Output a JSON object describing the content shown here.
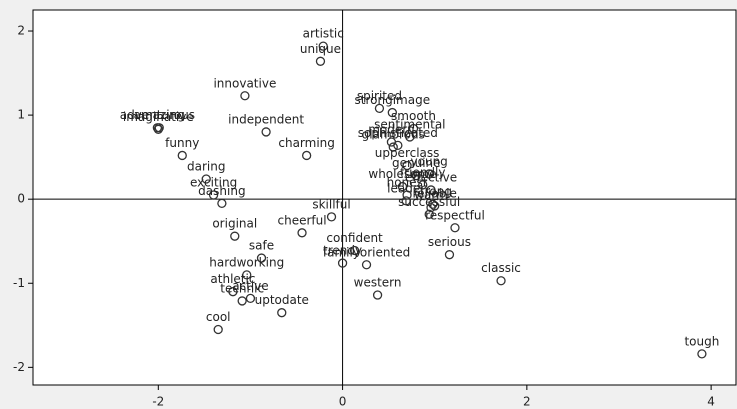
{
  "chart_data": {
    "type": "scatter",
    "labels": [
      "artistic",
      "unique",
      "innovative",
      "amazing",
      "adventurous",
      "imaginative",
      "funny",
      "independent",
      "spirited",
      "strongimage",
      "smooth",
      "modern",
      "sentimental",
      "sophisticated",
      "glamorous",
      "charming",
      "upperclass",
      "young",
      "genuine",
      "daring",
      "wholesome",
      "effective",
      "friendly",
      "strong",
      "reliable",
      "honest",
      "leader",
      "successful",
      "warm",
      "exciting",
      "dashing",
      "skillful",
      "original",
      "respectful",
      "cheerful",
      "safe",
      "trendy",
      "confident",
      "familyoriented",
      "hardworking",
      "serious",
      "classic",
      "western",
      "athletic",
      "active",
      "technic",
      "uptodate",
      "cool",
      "tough"
    ],
    "x": [
      -0.21,
      -0.24,
      -1.06,
      -1.99,
      -2.01,
      -2.0,
      -1.74,
      -0.83,
      0.4,
      0.54,
      0.77,
      0.53,
      0.73,
      0.6,
      0.55,
      -0.39,
      0.7,
      0.94,
      0.8,
      -1.48,
      0.65,
      0.96,
      0.87,
      0.98,
      1.0,
      0.7,
      0.69,
      0.94,
      0.96,
      -1.4,
      -1.31,
      -0.12,
      -1.17,
      1.22,
      -0.44,
      -0.88,
      0.0,
      0.13,
      0.26,
      -1.04,
      1.16,
      1.72,
      0.38,
      -1.19,
      -1.0,
      -1.09,
      -0.66,
      -1.35,
      3.9
    ],
    "values": [
      1.82,
      1.64,
      1.23,
      0.85,
      0.85,
      0.83,
      0.52,
      0.8,
      1.08,
      1.03,
      0.84,
      0.68,
      0.74,
      0.64,
      0.62,
      0.52,
      0.4,
      0.3,
      0.28,
      0.24,
      0.15,
      0.11,
      0.17,
      -0.06,
      -0.08,
      0.05,
      -0.02,
      -0.18,
      -0.1,
      0.05,
      -0.05,
      -0.21,
      -0.44,
      -0.34,
      -0.4,
      -0.7,
      -0.76,
      -0.61,
      -0.78,
      -0.9,
      -0.66,
      -0.97,
      -1.14,
      -1.1,
      -1.18,
      -1.21,
      -1.35,
      -1.55,
      -1.84
    ],
    "color": "#333333",
    "xlim": [
      -3.36,
      4.27
    ],
    "ylim": [
      -2.21,
      2.25
    ],
    "xticks": [
      -2,
      0,
      2,
      4
    ],
    "yticks": [
      -2,
      -1,
      0,
      1,
      2
    ]
  }
}
